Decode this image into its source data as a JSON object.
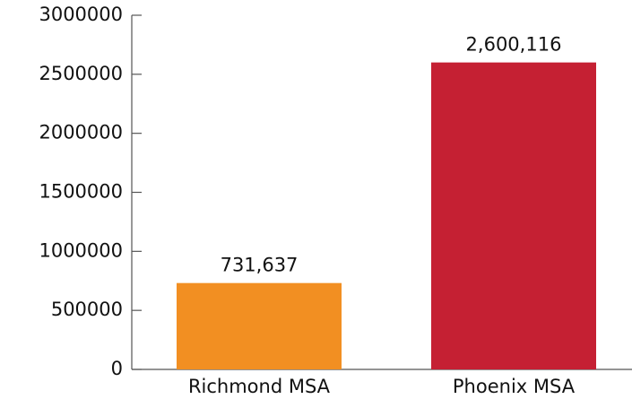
{
  "chart_data": {
    "type": "bar",
    "categories": [
      "Richmond MSA",
      "Phoenix MSA"
    ],
    "values": [
      731637,
      2600116
    ],
    "value_labels": [
      "731,637",
      "2,600,116"
    ],
    "colors": [
      "#f28f22",
      "#c52033"
    ],
    "ylim": [
      0,
      3000000
    ],
    "yticks": [
      0,
      500000,
      1000000,
      1500000,
      2000000,
      2500000,
      3000000
    ]
  }
}
